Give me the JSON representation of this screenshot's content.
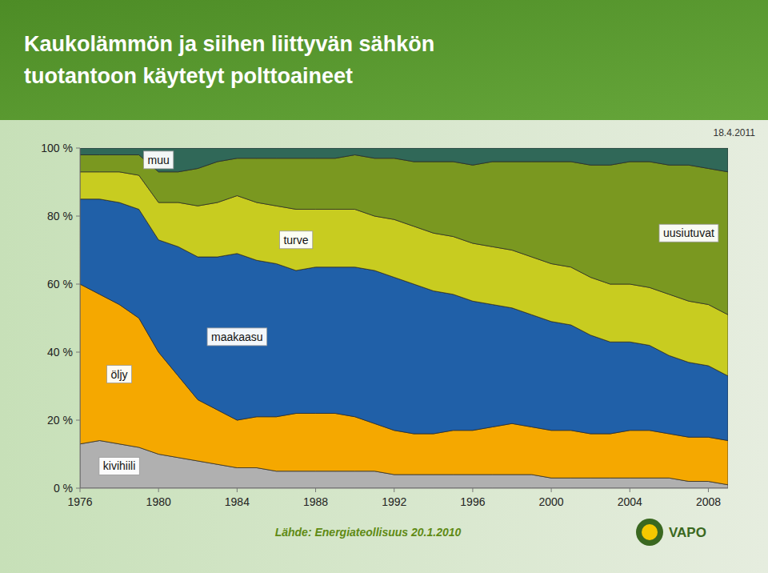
{
  "chart_data": {
    "type": "area",
    "stacked": true,
    "title": "Kaukolämmön ja siihen liittyvän sähkön",
    "subtitle": "tuotantoon käytetyt polttoaineet",
    "annotations": [
      "18.4.2011",
      "Lähde: Energiateollisuus 20.1.2010",
      "VAPO"
    ],
    "x": [
      1976,
      1977,
      1978,
      1979,
      1980,
      1981,
      1982,
      1983,
      1984,
      1985,
      1986,
      1987,
      1988,
      1989,
      1990,
      1991,
      1992,
      1993,
      1994,
      1995,
      1996,
      1997,
      1998,
      1999,
      2000,
      2001,
      2002,
      2003,
      2004,
      2005,
      2006,
      2007,
      2008,
      2009
    ],
    "series": [
      {
        "name": "kivihiili",
        "color": "#b0b0b0",
        "values": [
          13,
          14,
          13,
          12,
          10,
          9,
          8,
          7,
          6,
          6,
          5,
          5,
          5,
          5,
          5,
          5,
          4,
          4,
          4,
          4,
          4,
          4,
          4,
          4,
          3,
          3,
          3,
          3,
          3,
          3,
          3,
          2,
          2,
          1
        ]
      },
      {
        "name": "öljy",
        "color": "#f5a800",
        "values": [
          47,
          43,
          41,
          38,
          30,
          24,
          18,
          16,
          14,
          15,
          16,
          17,
          17,
          17,
          16,
          14,
          13,
          12,
          12,
          13,
          13,
          14,
          15,
          14,
          14,
          14,
          13,
          13,
          14,
          14,
          13,
          13,
          13,
          13
        ]
      },
      {
        "name": "maakaasu",
        "color": "#2060a8",
        "values": [
          25,
          28,
          30,
          32,
          33,
          38,
          42,
          45,
          49,
          46,
          45,
          42,
          43,
          43,
          44,
          45,
          45,
          44,
          42,
          40,
          38,
          36,
          34,
          33,
          32,
          31,
          29,
          27,
          26,
          25,
          23,
          22,
          21,
          19
        ]
      },
      {
        "name": "turve",
        "color": "#c8cc20",
        "values": [
          8,
          8,
          9,
          10,
          11,
          13,
          15,
          16,
          17,
          17,
          17,
          18,
          17,
          17,
          17,
          16,
          17,
          17,
          17,
          17,
          17,
          17,
          17,
          17,
          17,
          17,
          17,
          17,
          17,
          17,
          18,
          18,
          18,
          18
        ]
      },
      {
        "name": "uusiutuvat",
        "color": "#7a9820",
        "values": [
          5,
          5,
          5,
          6,
          9,
          9,
          11,
          12,
          11,
          13,
          14,
          15,
          15,
          15,
          16,
          17,
          18,
          19,
          21,
          22,
          23,
          25,
          26,
          28,
          30,
          31,
          33,
          35,
          36,
          37,
          38,
          40,
          40,
          42
        ]
      },
      {
        "name": "muu",
        "color": "#306858",
        "values": [
          2,
          2,
          2,
          2,
          7,
          7,
          6,
          4,
          3,
          3,
          3,
          3,
          3,
          3,
          2,
          3,
          3,
          4,
          4,
          4,
          5,
          4,
          4,
          4,
          4,
          4,
          5,
          5,
          4,
          4,
          5,
          5,
          6,
          7
        ]
      }
    ],
    "xlim": [
      1976,
      2009
    ],
    "xticks": [
      1976,
      1980,
      1984,
      1988,
      1992,
      1996,
      2000,
      2004,
      2008
    ],
    "ylim": [
      0,
      100
    ],
    "yticks": [
      {
        "value": 0,
        "label": "0 %"
      },
      {
        "value": 20,
        "label": "20 %"
      },
      {
        "value": 40,
        "label": "40 %"
      },
      {
        "value": 60,
        "label": "60 %"
      },
      {
        "value": 80,
        "label": "80 %"
      },
      {
        "value": 100,
        "label": "100 %"
      }
    ],
    "grid": true
  }
}
